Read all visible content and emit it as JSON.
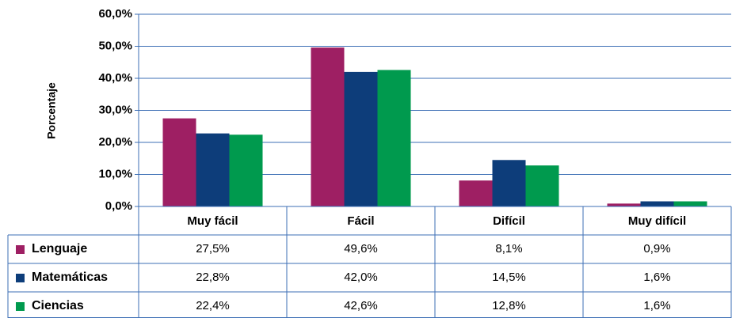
{
  "chart_data": {
    "type": "bar",
    "y_label": "Porcentaje",
    "categories": [
      "Muy fácil",
      "Fácil",
      "Difícil",
      "Muy difícil"
    ],
    "series": [
      {
        "name": "Lenguaje",
        "color": "#9e1f63",
        "values": [
          27.5,
          49.6,
          8.1,
          0.9
        ],
        "value_labels": [
          "27,5%",
          "49,6%",
          "8,1%",
          "0,9%"
        ]
      },
      {
        "name": "Matemáticas",
        "color": "#0d3d7a",
        "values": [
          22.8,
          42.0,
          14.5,
          1.6
        ],
        "value_labels": [
          "22,8%",
          "42,0%",
          "14,5%",
          "1,6%"
        ]
      },
      {
        "name": "Ciencias",
        "color": "#009a4e",
        "values": [
          22.4,
          42.6,
          12.8,
          1.6
        ],
        "value_labels": [
          "22,4%",
          "42,6%",
          "12,8%",
          "1,6%"
        ]
      }
    ],
    "ylim": [
      0,
      60
    ],
    "yticks": [
      {
        "value": 0,
        "label": "0,0%"
      },
      {
        "value": 10,
        "label": "10,0%"
      },
      {
        "value": 20,
        "label": "20,0%"
      },
      {
        "value": 30,
        "label": "30,0%"
      },
      {
        "value": 40,
        "label": "40,0%"
      },
      {
        "value": 50,
        "label": "50,0%"
      },
      {
        "value": 60,
        "label": "60,0%"
      }
    ],
    "grid": true
  }
}
